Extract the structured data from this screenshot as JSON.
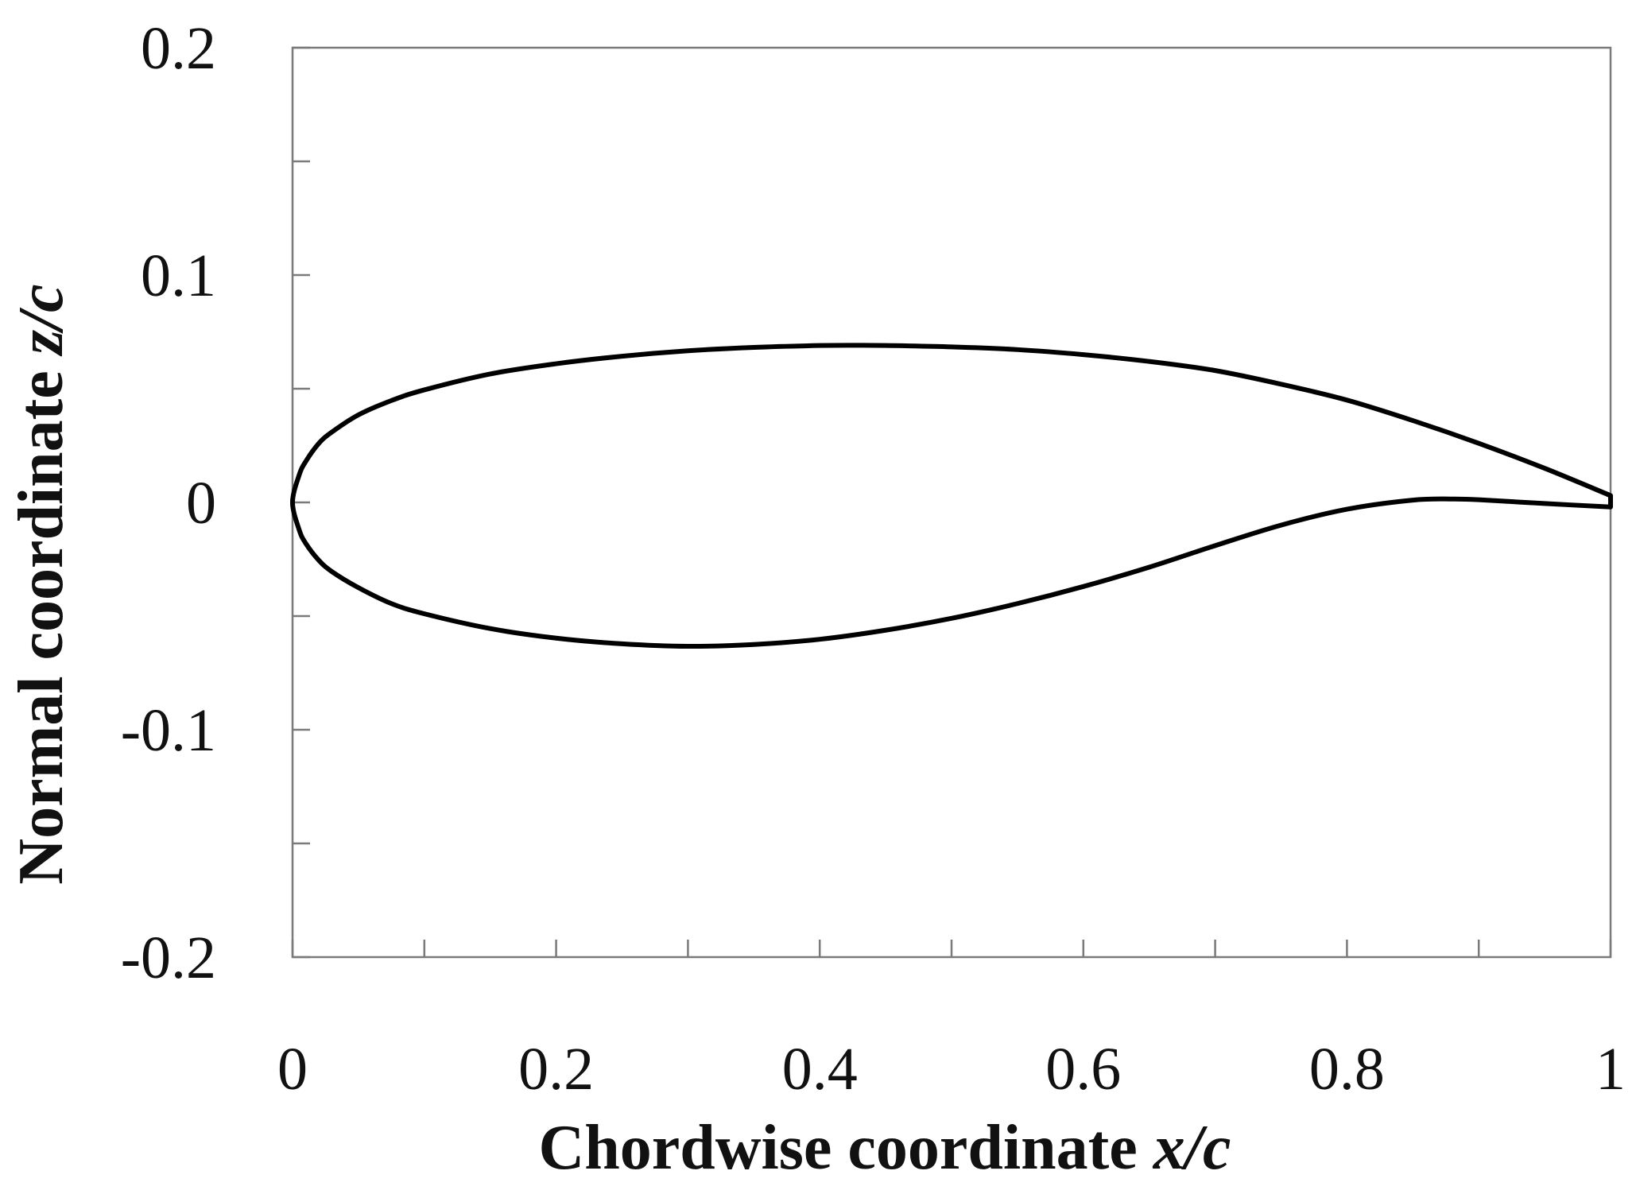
{
  "chart_data": {
    "type": "line",
    "title": "",
    "xlabel": "Chordwise coordinate x/c",
    "xlabel_parts": {
      "text": "Chordwise coordinate ",
      "var": "x/c"
    },
    "ylabel": "Normal coordinate z/c",
    "ylabel_parts": {
      "text": "Normal coordinate ",
      "var": "z/c"
    },
    "xlim": [
      0,
      1
    ],
    "ylim": [
      -0.2,
      0.2
    ],
    "x_ticks": [
      0,
      0.2,
      0.4,
      0.6,
      0.8,
      1
    ],
    "x_tick_labels": [
      "0",
      "0.2",
      "0.4",
      "0.6",
      "0.8",
      "1"
    ],
    "x_minor_ticks": [
      0.1,
      0.3,
      0.5,
      0.7,
      0.9
    ],
    "y_ticks": [
      -0.2,
      -0.1,
      0,
      0.1,
      0.2
    ],
    "y_tick_labels": [
      "-0.2",
      "-0.1",
      "0",
      "0.1",
      "0.2"
    ],
    "y_minor_ticks": [
      -0.15,
      -0.05,
      0.05,
      0.15
    ],
    "grid": false,
    "legend": "none",
    "line_color": "#000000",
    "series": [
      {
        "x": [
          1.0,
          0.95,
          0.9,
          0.85,
          0.8,
          0.75,
          0.7,
          0.65,
          0.6,
          0.55,
          0.5,
          0.45,
          0.43,
          0.4,
          0.35,
          0.3,
          0.25,
          0.2,
          0.15,
          0.1,
          0.075,
          0.05,
          0.03,
          0.02,
          0.01,
          0.005,
          0.0,
          0.005,
          0.01,
          0.02,
          0.03,
          0.05,
          0.075,
          0.1,
          0.15,
          0.2,
          0.25,
          0.3,
          0.35,
          0.4,
          0.45,
          0.5,
          0.55,
          0.6,
          0.65,
          0.7,
          0.75,
          0.8,
          0.85,
          0.88,
          0.9,
          0.95,
          1.0
        ],
        "y": [
          0.003,
          0.015,
          0.026,
          0.036,
          0.045,
          0.052,
          0.058,
          0.062,
          0.065,
          0.0672,
          0.0684,
          0.069,
          0.0691,
          0.069,
          0.0682,
          0.0667,
          0.0643,
          0.061,
          0.0565,
          0.0495,
          0.0448,
          0.0385,
          0.031,
          0.026,
          0.018,
          0.012,
          0.0,
          -0.012,
          -0.018,
          -0.0255,
          -0.0305,
          -0.0375,
          -0.0445,
          -0.049,
          -0.0555,
          -0.0597,
          -0.0622,
          -0.0633,
          -0.0625,
          -0.0602,
          -0.0562,
          -0.051,
          -0.0445,
          -0.037,
          -0.0285,
          -0.019,
          -0.01,
          -0.003,
          0.001,
          0.0015,
          0.0012,
          -0.0005,
          -0.002
        ]
      }
    ]
  }
}
